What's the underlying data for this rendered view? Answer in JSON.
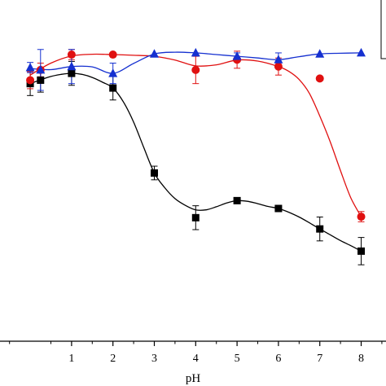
{
  "chart_data": {
    "type": "scatter",
    "title": "",
    "xlabel": "pH",
    "ylabel": "",
    "xlim": [
      -0.73,
      8.6
    ],
    "ylim": [
      0,
      100
    ],
    "xticks": [
      "1",
      "2",
      "3",
      "4",
      "5",
      "6",
      "7",
      "8"
    ],
    "grid": false,
    "legend": "top-right",
    "series": [
      {
        "marker": "square",
        "color": "#000000",
        "x": [
          0,
          0.25,
          1,
          2,
          3,
          4,
          5,
          6,
          7,
          8
        ],
        "y": [
          75.5,
          76.5,
          78.5,
          74.2,
          49.3,
          36.2,
          41.2,
          38.9,
          32.9,
          26.4
        ],
        "err": [
          3.5,
          3.5,
          3.5,
          3.5,
          2.0,
          3.5,
          0,
          0,
          3.5,
          4.0
        ],
        "fit_x": [
          0,
          0.25,
          0.5,
          0.75,
          1,
          1.25,
          1.5,
          1.75,
          2,
          2.25,
          2.5,
          2.75,
          3,
          3.25,
          3.5,
          3.75,
          4,
          4.25,
          4.5,
          4.75,
          5,
          5.25,
          5.5,
          5.75,
          6,
          6.25,
          6.5,
          6.75,
          7,
          7.25,
          7.5,
          7.75,
          8
        ],
        "fit_y": [
          75.5,
          76.6,
          77.6,
          78.2,
          78.5,
          78.2,
          77.3,
          75.9,
          74.2,
          70.2,
          64.2,
          56.6,
          49.3,
          45.0,
          41.8,
          39.8,
          38.5,
          38.5,
          39.4,
          40.5,
          41.2,
          41.0,
          40.3,
          39.5,
          38.9,
          37.8,
          36.4,
          34.7,
          32.9,
          31.2,
          29.5,
          28.0,
          26.4
        ]
      },
      {
        "marker": "circle",
        "color": "#e01010",
        "x": [
          0,
          0.25,
          1,
          2,
          4,
          5,
          6,
          7,
          8
        ],
        "y": [
          76.5,
          79.5,
          84,
          84,
          79.5,
          82.5,
          80.5,
          77,
          36.5
        ],
        "err": [
          2.5,
          2.0,
          1.5,
          0,
          4.0,
          2.5,
          2.5,
          0,
          1.5
        ],
        "fit_x": [
          0,
          0.5,
          1,
          1.5,
          2,
          2.5,
          3,
          3.5,
          4,
          4.5,
          5,
          5.5,
          6,
          6.25,
          6.5,
          6.75,
          7,
          7.25,
          7.5,
          7.75,
          8
        ],
        "fit_y": [
          78.0,
          81.5,
          83.6,
          84.1,
          84.0,
          83.8,
          83.5,
          82.4,
          80.7,
          81.0,
          82.4,
          82.1,
          80.5,
          79.1,
          76.7,
          72.6,
          66.0,
          58.5,
          50.0,
          42.0,
          36.5
        ]
      },
      {
        "marker": "triangle",
        "color": "#1530d0",
        "x": [
          0,
          0.25,
          1,
          2,
          3,
          4,
          5,
          6,
          7,
          8
        ],
        "y": [
          80.2,
          79.5,
          80.5,
          78.5,
          84.2,
          84.5,
          83.5,
          82.5,
          84.2,
          84.5
        ],
        "err": [
          1.5,
          6.0,
          5.0,
          3.0,
          0,
          0,
          1.0,
          2.0,
          0,
          0
        ],
        "fit_x": [
          0,
          0.5,
          1,
          1.5,
          2,
          2.5,
          3,
          3.5,
          4,
          4.5,
          5,
          5.5,
          6,
          6.5,
          7,
          7.5,
          8
        ],
        "fit_y": [
          79.9,
          79.6,
          80.5,
          80.4,
          78.5,
          81.4,
          84.2,
          84.7,
          84.5,
          84.0,
          83.5,
          83.0,
          82.5,
          83.4,
          84.2,
          84.4,
          84.5
        ]
      }
    ]
  }
}
